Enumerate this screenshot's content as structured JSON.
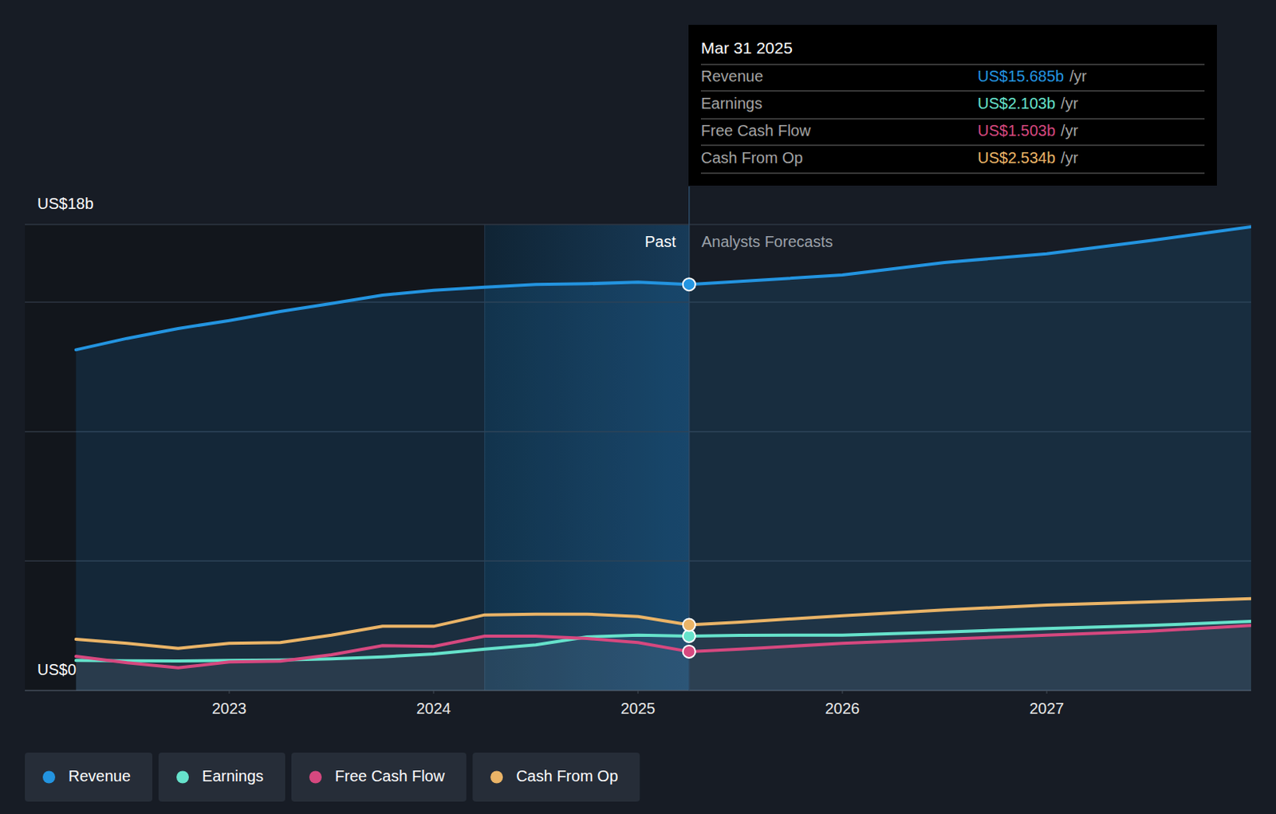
{
  "chart_data": {
    "type": "line",
    "x": [
      2022.25,
      2022.5,
      2022.75,
      2023,
      2023.25,
      2023.5,
      2023.75,
      2024,
      2024.25,
      2024.5,
      2024.75,
      2025,
      2025.25,
      2025.5,
      2026,
      2026.5,
      2027,
      2027.5,
      2028
    ],
    "xlim": [
      2022,
      2028
    ],
    "xticks": [
      2023,
      2024,
      2025,
      2026,
      2027
    ],
    "ylim": [
      0,
      18
    ],
    "yticks": [
      {
        "value": 0,
        "label": "US$0"
      },
      {
        "value": 5,
        "label": null
      },
      {
        "value": 10,
        "label": null
      },
      {
        "value": 15,
        "label": null
      },
      {
        "value": 18,
        "label": "US$18b"
      }
    ],
    "grid": true,
    "legend": "bottom-left",
    "series": [
      {
        "name": "Revenue",
        "color": "#2394e0",
        "values": [
          13.16,
          13.6,
          13.98,
          14.29,
          14.64,
          14.95,
          15.27,
          15.46,
          15.58,
          15.68,
          15.71,
          15.77,
          15.685,
          15.8,
          16.05,
          16.53,
          16.87,
          17.37,
          17.91
        ]
      },
      {
        "name": "Earnings",
        "color": "#66e2cb",
        "values": [
          1.16,
          1.15,
          1.14,
          1.16,
          1.18,
          1.22,
          1.3,
          1.41,
          1.6,
          1.76,
          2.07,
          2.14,
          2.103,
          2.13,
          2.14,
          2.26,
          2.39,
          2.51,
          2.67
        ]
      },
      {
        "name": "Free Cash Flow",
        "color": "#d6487f",
        "values": [
          1.32,
          1.07,
          0.88,
          1.1,
          1.13,
          1.38,
          1.73,
          1.7,
          2.1,
          2.1,
          2.01,
          1.85,
          1.503,
          1.6,
          1.82,
          1.98,
          2.14,
          2.29,
          2.51
        ]
      },
      {
        "name": "Cash From Op",
        "color": "#eab467",
        "values": [
          1.98,
          1.82,
          1.63,
          1.82,
          1.85,
          2.14,
          2.48,
          2.48,
          2.92,
          2.95,
          2.95,
          2.86,
          2.534,
          2.64,
          2.89,
          3.11,
          3.3,
          3.42,
          3.55
        ]
      }
    ],
    "highlight": [
      2024.25,
      2025.25
    ],
    "past_label": "Past",
    "forecast_label": "Analysts Forecasts",
    "tooltip": {
      "x": 2025.25,
      "title": "Mar 31 2025",
      "rows": [
        {
          "name": "Revenue",
          "label": "US$15.685b",
          "unit": "/yr"
        },
        {
          "name": "Earnings",
          "label": "US$2.103b",
          "unit": "/yr"
        },
        {
          "name": "Free Cash Flow",
          "label": "US$1.503b",
          "unit": "/yr"
        },
        {
          "name": "Cash From Op",
          "label": "US$2.534b",
          "unit": "/yr"
        }
      ]
    }
  }
}
